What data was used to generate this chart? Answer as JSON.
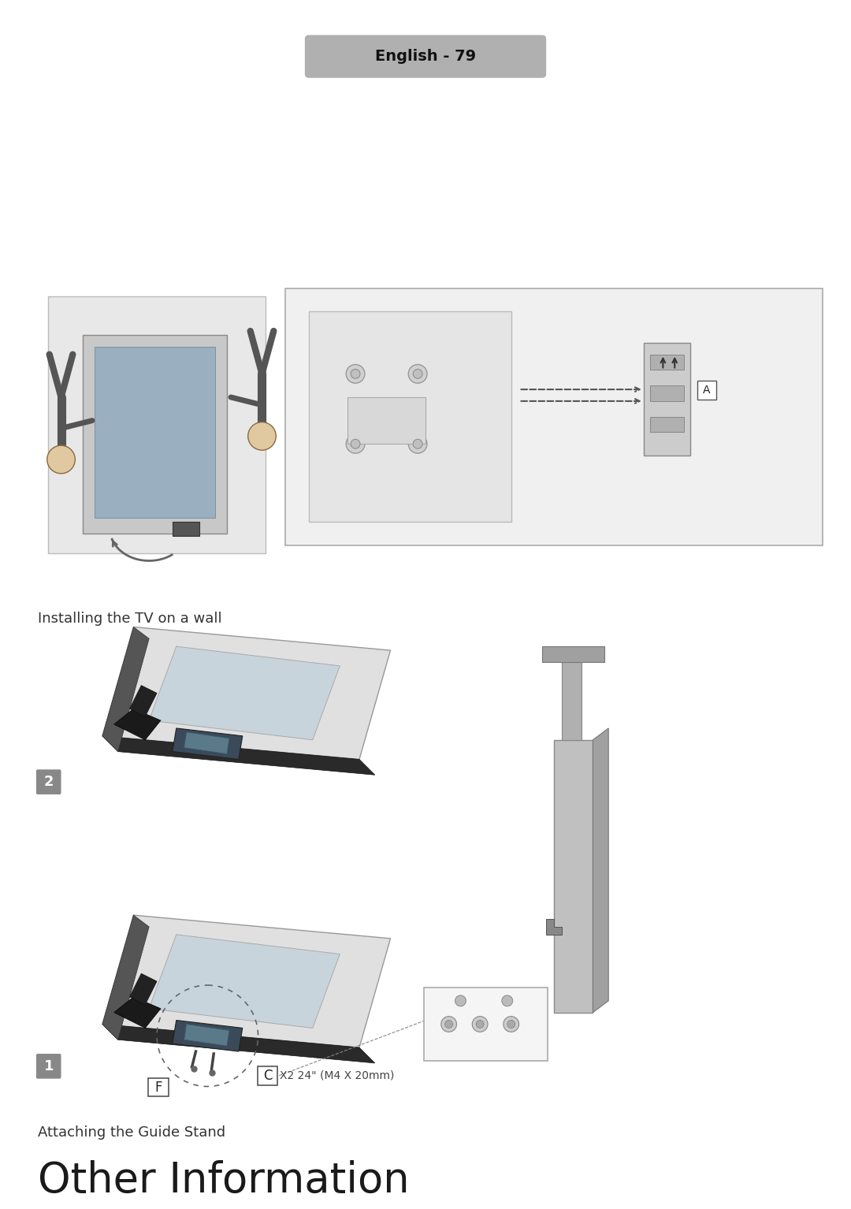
{
  "title": "Other Information",
  "subtitle": "Attaching the Guide Stand",
  "section2_label": "Installing the TV on a wall",
  "page_label": "English - 79",
  "bg_color": "#ffffff",
  "title_color": "#1a1a1a",
  "subtitle_color": "#333333",
  "step_box_color": "#888888",
  "step_box_text": "#ffffff",
  "page_bg": "#b0b0b0",
  "page_text": "#111111"
}
